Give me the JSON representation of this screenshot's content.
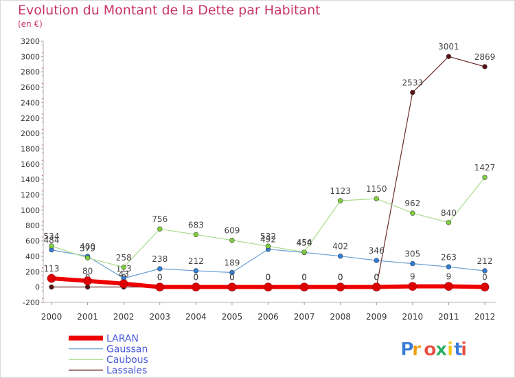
{
  "title": "Evolution du Montant de la Dette par Habitant",
  "subtitle": "(en €)",
  "brand": "Proxiti",
  "chart_data": {
    "type": "line",
    "x": [
      "2000",
      "2001",
      "2002",
      "2003",
      "2004",
      "2005",
      "2006",
      "2007",
      "2008",
      "2009",
      "2010",
      "2011",
      "2012"
    ],
    "ylim": [
      -200,
      3200
    ],
    "yticks": [
      -200,
      0,
      200,
      400,
      600,
      800,
      1000,
      1200,
      1400,
      1600,
      1800,
      2000,
      2200,
      2400,
      2600,
      2800,
      3000,
      3200
    ],
    "grid": false,
    "legend": "bottom-left",
    "series": [
      {
        "name": "Lassales",
        "color": "#6b2a2a",
        "marker": "#5a0f0f",
        "width": 1.2,
        "values": [
          0,
          0,
          0,
          0,
          0,
          0,
          0,
          0,
          0,
          0,
          2533,
          3001,
          2869
        ]
      },
      {
        "name": "Gaussan",
        "color": "#6a9fd4",
        "marker": "#2f7ed8",
        "width": 1.2,
        "values": [
          484,
          400,
          113,
          238,
          212,
          189,
          492,
          450,
          402,
          346,
          305,
          263,
          212
        ]
      },
      {
        "name": "Caubous",
        "color": "#a9dc8c",
        "marker": "#7fcf3c",
        "width": 1.2,
        "values": [
          534,
          379,
          258,
          756,
          683,
          609,
          532,
          454,
          1123,
          1150,
          962,
          840,
          1427
        ]
      },
      {
        "name": "LARAN",
        "color": "#ee0000",
        "marker": "#dd0000",
        "width": 6,
        "values": [
          113,
          80,
          43,
          0,
          0,
          0,
          0,
          0,
          0,
          0,
          9,
          9,
          0
        ]
      }
    ],
    "legend_order": [
      "LARAN",
      "Gaussan",
      "Caubous",
      "Lassales"
    ]
  }
}
